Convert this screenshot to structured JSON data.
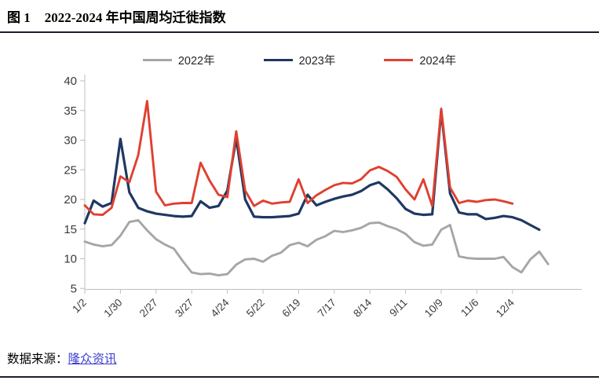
{
  "header": {
    "figure_label": "图 1",
    "title": "2022-2024 年中国周均迁徙指数"
  },
  "footer": {
    "source_label": "数据来源：",
    "source_link": "隆众资讯"
  },
  "chart_data": {
    "type": "line",
    "title": "图 1 2022-2024 年中国周均迁徙指数",
    "xlabel": "",
    "ylabel": "",
    "grid": false,
    "legend_position": "top-center",
    "ylim": [
      5,
      40
    ],
    "y_ticks": [
      40,
      35,
      30,
      25,
      20,
      15,
      10,
      5
    ],
    "x_frequency": "weekly",
    "x_tick_week_step": 4,
    "x_tick_labels": [
      "1/2",
      "1/30",
      "2/27",
      "3/27",
      "4/24",
      "5/22",
      "6/19",
      "7/17",
      "8/14",
      "9/11",
      "10/9",
      "11/6",
      "12/4"
    ],
    "axis_color": "#bfbfbf",
    "tick_label_color": "#3a3a3a",
    "series": [
      {
        "name": "2022年",
        "color": "#a6a6a6",
        "values": [
          12.9,
          12.4,
          12.1,
          12.3,
          13.9,
          16.2,
          16.5,
          14.8,
          13.3,
          12.4,
          11.7,
          9.6,
          7.7,
          7.4,
          7.5,
          7.2,
          7.4,
          9.0,
          9.9,
          10.0,
          9.5,
          10.5,
          11.0,
          12.3,
          12.7,
          12.1,
          13.2,
          13.8,
          14.7,
          14.5,
          14.8,
          15.2,
          16.0,
          16.1,
          15.5,
          15.0,
          14.2,
          12.8,
          12.2,
          12.4,
          14.9,
          15.7,
          10.4,
          10.1,
          10.0,
          10.0,
          10.0,
          10.3,
          8.6,
          7.7,
          9.9,
          11.2,
          9.1
        ]
      },
      {
        "name": "2023年",
        "color": "#1f3864",
        "values": [
          16.0,
          19.8,
          18.8,
          19.4,
          30.2,
          21.2,
          18.6,
          18.0,
          17.6,
          17.4,
          17.2,
          17.1,
          17.2,
          19.7,
          18.6,
          18.9,
          21.5,
          30.3,
          20.0,
          17.1,
          17.0,
          17.0,
          17.1,
          17.2,
          17.6,
          20.8,
          19.0,
          19.6,
          20.1,
          20.5,
          20.8,
          21.4,
          22.4,
          22.9,
          21.7,
          20.2,
          18.4,
          17.6,
          17.4,
          17.5,
          35.0,
          21.0,
          17.8,
          17.5,
          17.5,
          16.7,
          16.9,
          17.2,
          17.0,
          16.5,
          15.7,
          14.9
        ]
      },
      {
        "name": "2024年",
        "color": "#e04030",
        "values": [
          19.0,
          17.5,
          17.4,
          18.6,
          23.9,
          22.9,
          27.5,
          36.6,
          21.3,
          19.0,
          19.3,
          19.4,
          19.4,
          26.2,
          23.2,
          20.8,
          20.4,
          31.5,
          21.5,
          18.9,
          19.8,
          19.3,
          19.5,
          19.6,
          23.4,
          19.4,
          20.7,
          21.6,
          22.4,
          22.8,
          22.7,
          23.4,
          24.9,
          25.5,
          24.8,
          23.8,
          21.7,
          20.0,
          23.4,
          18.9,
          35.3,
          22.0,
          19.4,
          19.8,
          19.6,
          19.9,
          20.0,
          19.7,
          19.3
        ]
      }
    ]
  }
}
